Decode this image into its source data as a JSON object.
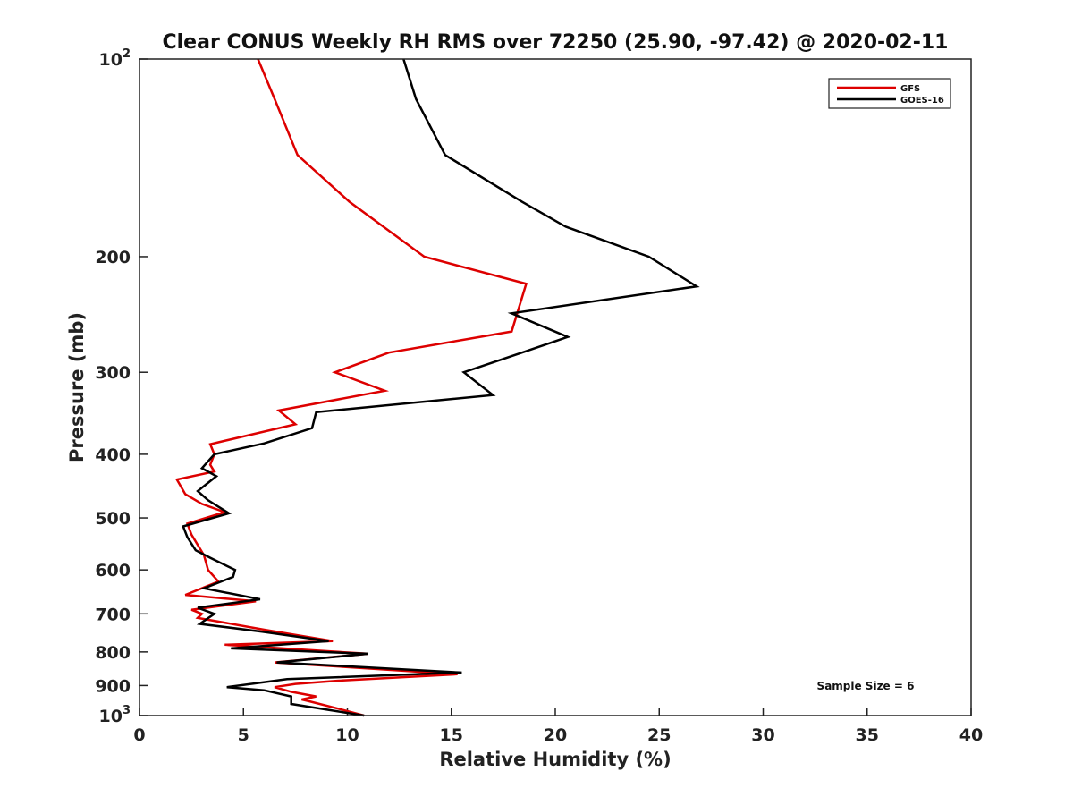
{
  "chart_data": {
    "type": "line",
    "title": "Clear CONUS Weekly RH RMS over 72250 (25.90, -97.42) @ 2020-02-11",
    "xlabel": "Relative Humidity (%)",
    "ylabel": "Pressure (mb)",
    "xlim": [
      0,
      40
    ],
    "ylim": [
      100,
      1000
    ],
    "yscale": "log",
    "y_reversed": true,
    "xticks": [
      0,
      5,
      10,
      15,
      20,
      25,
      30,
      35,
      40
    ],
    "yticks": [
      {
        "value": 100,
        "label": "10",
        "sup": "2"
      },
      {
        "value": 200,
        "label": "200",
        "sup": ""
      },
      {
        "value": 300,
        "label": "300",
        "sup": ""
      },
      {
        "value": 400,
        "label": "400",
        "sup": ""
      },
      {
        "value": 500,
        "label": "500",
        "sup": ""
      },
      {
        "value": 600,
        "label": "600",
        "sup": ""
      },
      {
        "value": 700,
        "label": "700",
        "sup": ""
      },
      {
        "value": 800,
        "label": "800",
        "sup": ""
      },
      {
        "value": 900,
        "label": "900",
        "sup": ""
      },
      {
        "value": 1000,
        "label": "10",
        "sup": "3"
      }
    ],
    "grid": false,
    "legend_position": "top-right",
    "annotation": "Sample Size = 6",
    "series": [
      {
        "name": "GFS",
        "color": "#dd0000",
        "x": [
          5.7,
          6.5,
          7.6,
          10.1,
          13.7,
          18.6,
          17.9,
          12.0,
          9.4,
          11.8,
          6.7,
          7.5,
          3.4,
          3.6,
          3.4,
          3.6,
          1.8,
          2.2,
          3.0,
          4.1,
          2.3,
          2.5,
          3.1,
          3.3,
          3.8,
          2.2,
          5.6,
          2.5,
          3.0,
          2.8,
          6.0,
          9.3,
          4.1,
          11.0,
          6.5,
          15.3,
          9.5,
          7.5,
          6.5,
          7.3,
          8.5,
          7.8,
          8.1,
          9.5,
          10.8
        ],
        "y": [
          100,
          115,
          140,
          165,
          200,
          220,
          260,
          280,
          300,
          320,
          343,
          360,
          386,
          400,
          415,
          425,
          437,
          460,
          476,
          490,
          510,
          530,
          570,
          600,
          625,
          655,
          670,
          690,
          700,
          710,
          740,
          770,
          780,
          805,
          830,
          865,
          885,
          895,
          905,
          920,
          935,
          945,
          950,
          975,
          1000
        ]
      },
      {
        "name": "GOES-16",
        "color": "#000000",
        "x": [
          12.7,
          13.3,
          14.7,
          18.4,
          20.5,
          24.5,
          26.8,
          17.9,
          20.6,
          18.4,
          15.6,
          17.0,
          8.5,
          8.3,
          6.0,
          3.6,
          3.0,
          3.7,
          2.8,
          3.3,
          4.3,
          2.1,
          2.3,
          2.7,
          3.4,
          4.6,
          4.5,
          3.1,
          5.8,
          2.8,
          3.6,
          2.9,
          5.9,
          9.1,
          4.4,
          11.0,
          6.6,
          15.5,
          7.1,
          4.2,
          6.0,
          7.3,
          7.3,
          10.8
        ],
        "y": [
          100,
          115,
          140,
          165,
          180,
          200,
          222,
          244,
          265,
          280,
          300,
          325,
          345,
          365,
          385,
          400,
          420,
          432,
          455,
          470,
          492,
          515,
          535,
          560,
          575,
          600,
          615,
          640,
          665,
          685,
          700,
          725,
          745,
          770,
          790,
          805,
          830,
          860,
          880,
          905,
          915,
          935,
          960,
          1000
        ]
      }
    ]
  }
}
